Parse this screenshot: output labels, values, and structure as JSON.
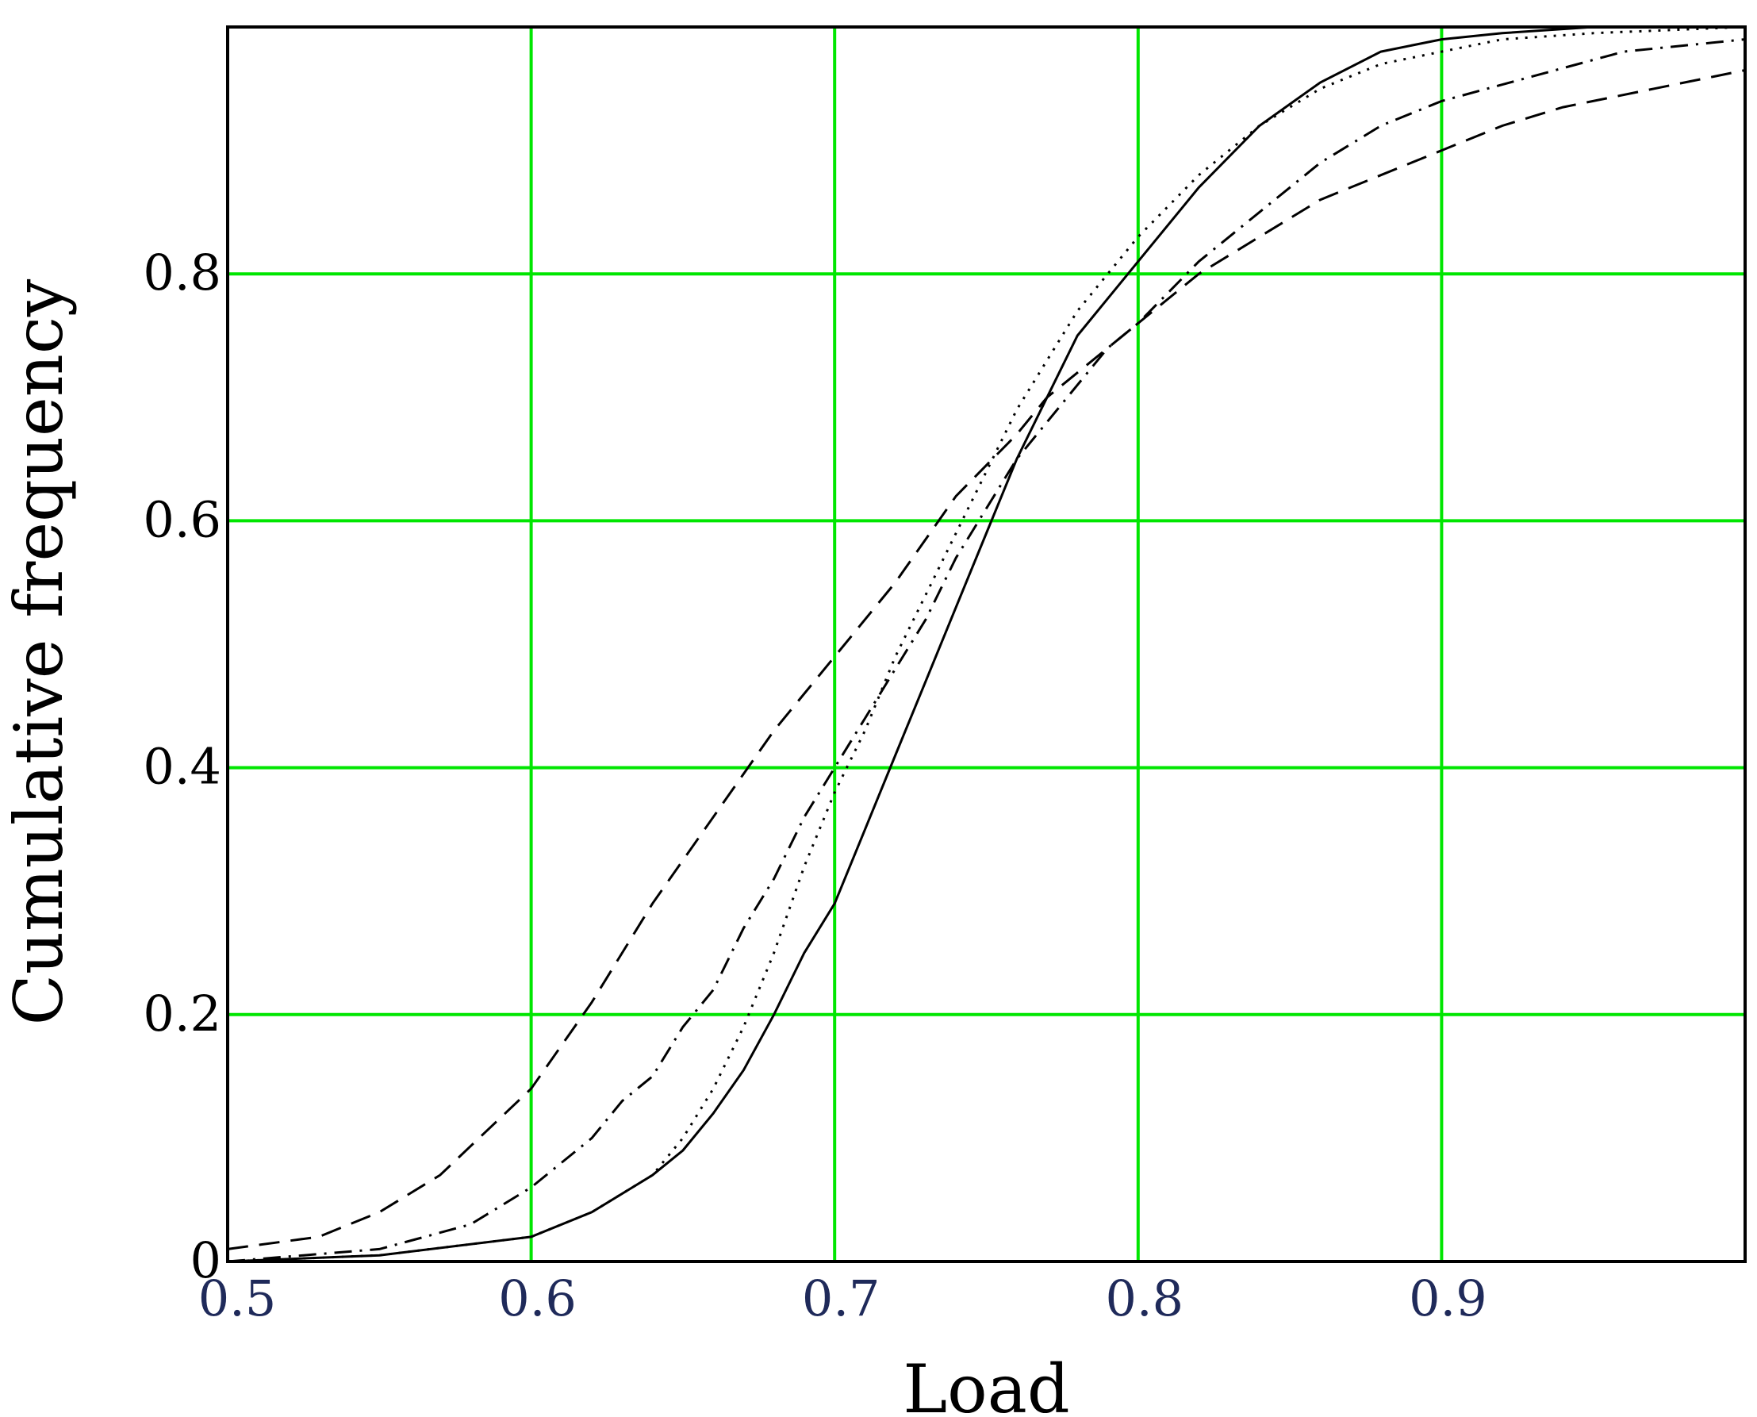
{
  "chart_data": {
    "type": "line",
    "title": "",
    "xlabel": "Load",
    "ylabel": "Cumulative frequency",
    "xlim": [
      0.5,
      1.0
    ],
    "ylim": [
      0,
      1.0
    ],
    "xticks": [
      0.5,
      0.6,
      0.7,
      0.8,
      0.9
    ],
    "xtick_labels": [
      "0.5",
      "0.6",
      "0.7",
      "0.8",
      "0.9"
    ],
    "yticks": [
      0,
      0.2,
      0.4,
      0.6,
      0.8
    ],
    "ytick_labels": [
      "0",
      "0.2",
      "0.4",
      "0.6",
      "0.8"
    ],
    "grid": true,
    "colors": {
      "grid": "#00e600",
      "lines": "#000000",
      "xtick": "#1f2a5a"
    },
    "series": [
      {
        "style": "solid",
        "x": [
          0.5,
          0.55,
          0.6,
          0.62,
          0.64,
          0.65,
          0.66,
          0.67,
          0.68,
          0.69,
          0.7,
          0.71,
          0.72,
          0.73,
          0.74,
          0.75,
          0.76,
          0.77,
          0.78,
          0.79,
          0.8,
          0.82,
          0.84,
          0.86,
          0.88,
          0.9,
          0.92,
          0.95,
          1.0
        ],
        "y": [
          0.0,
          0.005,
          0.02,
          0.04,
          0.07,
          0.09,
          0.12,
          0.155,
          0.2,
          0.25,
          0.29,
          0.35,
          0.41,
          0.47,
          0.53,
          0.59,
          0.65,
          0.7,
          0.75,
          0.78,
          0.81,
          0.87,
          0.92,
          0.955,
          0.98,
          0.99,
          0.995,
          1.0,
          1.0
        ]
      },
      {
        "style": "dotted",
        "x": [
          0.5,
          0.55,
          0.6,
          0.62,
          0.64,
          0.65,
          0.66,
          0.67,
          0.68,
          0.69,
          0.7,
          0.71,
          0.72,
          0.73,
          0.74,
          0.75,
          0.76,
          0.77,
          0.78,
          0.79,
          0.8,
          0.82,
          0.84,
          0.86,
          0.88,
          0.9,
          0.92,
          0.95,
          1.0
        ],
        "y": [
          0.0,
          0.005,
          0.02,
          0.04,
          0.07,
          0.1,
          0.14,
          0.19,
          0.25,
          0.32,
          0.38,
          0.43,
          0.49,
          0.54,
          0.59,
          0.64,
          0.69,
          0.73,
          0.77,
          0.8,
          0.83,
          0.88,
          0.92,
          0.95,
          0.97,
          0.98,
          0.99,
          0.995,
          1.0
        ]
      },
      {
        "style": "dash-dot",
        "x": [
          0.5,
          0.55,
          0.58,
          0.6,
          0.62,
          0.63,
          0.64,
          0.65,
          0.66,
          0.67,
          0.68,
          0.69,
          0.7,
          0.71,
          0.72,
          0.73,
          0.74,
          0.75,
          0.76,
          0.77,
          0.78,
          0.79,
          0.8,
          0.82,
          0.84,
          0.86,
          0.88,
          0.9,
          0.93,
          0.96,
          1.0
        ],
        "y": [
          0.0,
          0.01,
          0.03,
          0.06,
          0.1,
          0.13,
          0.15,
          0.19,
          0.22,
          0.27,
          0.31,
          0.36,
          0.4,
          0.44,
          0.48,
          0.52,
          0.57,
          0.61,
          0.65,
          0.68,
          0.71,
          0.74,
          0.76,
          0.81,
          0.85,
          0.89,
          0.92,
          0.94,
          0.96,
          0.98,
          0.99
        ]
      },
      {
        "style": "dashed",
        "x": [
          0.5,
          0.53,
          0.55,
          0.57,
          0.6,
          0.62,
          0.64,
          0.66,
          0.68,
          0.7,
          0.72,
          0.74,
          0.76,
          0.77,
          0.78,
          0.79,
          0.8,
          0.82,
          0.84,
          0.86,
          0.88,
          0.9,
          0.92,
          0.94,
          0.97,
          1.0
        ],
        "y": [
          0.01,
          0.02,
          0.04,
          0.07,
          0.14,
          0.21,
          0.29,
          0.36,
          0.43,
          0.49,
          0.55,
          0.62,
          0.67,
          0.7,
          0.72,
          0.74,
          0.76,
          0.8,
          0.83,
          0.86,
          0.88,
          0.9,
          0.92,
          0.935,
          0.95,
          0.965
        ]
      }
    ]
  }
}
